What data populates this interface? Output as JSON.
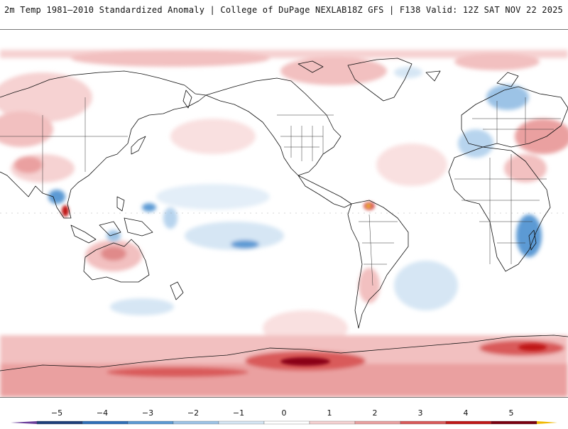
{
  "header": {
    "title": "2m Temp 1981–2010 Standardized Anomaly | College of DuPage NEXLAB",
    "run_info": "18Z GFS | F138 Valid: 12Z SAT NOV 22 2025"
  },
  "colorbar": {
    "labels": [
      "−5",
      "−4",
      "−3",
      "−2",
      "−1",
      "0",
      "1",
      "2",
      "3",
      "4",
      "5"
    ],
    "colors": [
      "#6a3d9a",
      "#1f3f7a",
      "#2f6fb8",
      "#5b9ad4",
      "#9cc3e6",
      "#d6e6f4",
      "#ffffff",
      "#f6d2d2",
      "#eaa0a0",
      "#d95a5a",
      "#c01818",
      "#7a0010",
      "#f0b800"
    ]
  },
  "map": {
    "projection": "Global cylindrical equidistant",
    "variable": "2m Temperature Standardized Anomaly"
  }
}
